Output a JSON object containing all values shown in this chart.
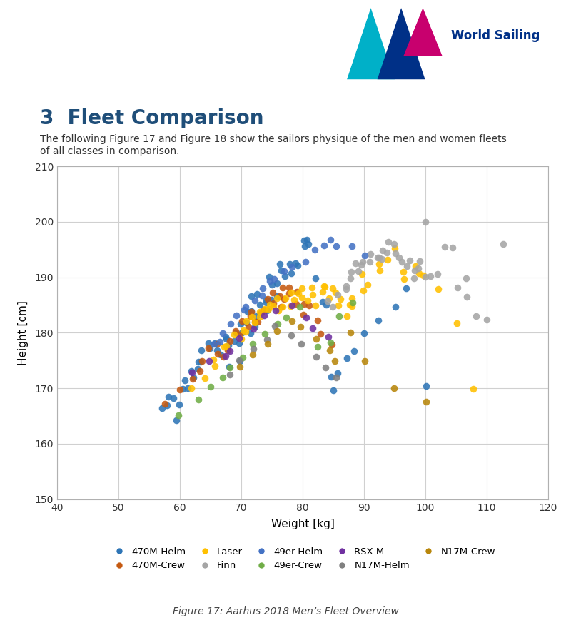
{
  "title": "3  Fleet Comparison",
  "subtitle": "The following Figure 17 and Figure 18 show the sailors physique of the men and women fleets\nof all classes in comparison.",
  "caption": "Figure 17: Aarhus 2018 Men’s Fleet Overview",
  "xlabel": "Weight [kg]",
  "ylabel": "Height [cm]",
  "xlim": [
    40,
    120
  ],
  "ylim": [
    150,
    210
  ],
  "xticks": [
    40,
    50,
    60,
    70,
    80,
    90,
    100,
    110,
    120
  ],
  "yticks": [
    150,
    160,
    170,
    180,
    190,
    200,
    210
  ],
  "background_color": "#ffffff",
  "classes": {
    "470M-Helm": {
      "color": "#2E75B6",
      "weight": [
        57,
        58,
        58,
        59,
        59,
        60,
        60,
        61,
        61,
        62,
        62,
        63,
        63,
        64,
        64,
        65,
        65,
        66,
        66,
        67,
        67,
        68,
        68,
        68,
        69,
        69,
        70,
        70,
        70,
        70,
        71,
        71,
        71,
        72,
        72,
        72,
        73,
        73,
        73,
        74,
        74,
        74,
        75,
        75,
        75,
        76,
        76,
        76,
        77,
        77,
        78,
        78,
        79,
        79,
        80,
        80,
        81,
        81,
        82,
        83,
        84,
        85,
        85,
        86,
        87,
        88,
        90,
        92,
        95,
        97,
        100
      ],
      "height": [
        166,
        167,
        168,
        165,
        168,
        167,
        170,
        170,
        172,
        172,
        173,
        173,
        175,
        175,
        177,
        177,
        178,
        177,
        178,
        176,
        179,
        178,
        174,
        179,
        179,
        180,
        178,
        180,
        175,
        182,
        182,
        180,
        184,
        184,
        181,
        186,
        185,
        183,
        187,
        186,
        184,
        186,
        188,
        186,
        190,
        189,
        187,
        192,
        190,
        191,
        191,
        192,
        193,
        192,
        195,
        197,
        197,
        196,
        190,
        186,
        185,
        170,
        172,
        173,
        175,
        177,
        180,
        182,
        185,
        188,
        170
      ]
    },
    "470M-Crew": {
      "color": "#C55A11",
      "weight": [
        58,
        60,
        62,
        63,
        64,
        65,
        66,
        66,
        67,
        68,
        68,
        69,
        70,
        70,
        71,
        71,
        72,
        72,
        73,
        73,
        74,
        74,
        75,
        75,
        76,
        76,
        77,
        77,
        78,
        78,
        79,
        79,
        80,
        80,
        81,
        82,
        83,
        84
      ],
      "height": [
        167,
        170,
        172,
        173,
        175,
        177,
        176,
        178,
        176,
        179,
        177,
        180,
        182,
        180,
        183,
        181,
        184,
        182,
        182,
        184,
        186,
        184,
        185,
        187,
        187,
        185,
        186,
        188,
        188,
        186,
        185,
        187,
        183,
        185,
        185,
        182,
        180,
        178
      ]
    },
    "Laser": {
      "color": "#FFC000",
      "weight": [
        62,
        64,
        65,
        66,
        67,
        68,
        69,
        70,
        70,
        71,
        71,
        72,
        72,
        73,
        73,
        74,
        74,
        75,
        75,
        76,
        76,
        77,
        77,
        78,
        78,
        79,
        79,
        80,
        80,
        81,
        81,
        82,
        82,
        83,
        83,
        84,
        84,
        85,
        85,
        86,
        86,
        87,
        88,
        88,
        89,
        90,
        90,
        91,
        92,
        93,
        94,
        95,
        96,
        97,
        98,
        99,
        100,
        102,
        105,
        108
      ],
      "height": [
        170,
        172,
        174,
        175,
        177,
        178,
        179,
        181,
        179,
        180,
        182,
        182,
        183,
        183,
        184,
        184,
        185,
        185,
        184,
        184,
        186,
        186,
        185,
        185,
        187,
        187,
        186,
        188,
        186,
        186,
        188,
        185,
        187,
        187,
        188,
        186,
        188,
        188,
        187,
        185,
        186,
        183,
        185,
        186,
        185,
        190,
        188,
        189,
        192,
        191,
        193,
        195,
        191,
        190,
        192,
        191,
        190,
        188,
        182,
        170
      ]
    },
    "Finn": {
      "color": "#A5A5A5",
      "weight": [
        84,
        85,
        86,
        87,
        87,
        88,
        88,
        89,
        89,
        90,
        90,
        91,
        91,
        92,
        92,
        93,
        93,
        94,
        94,
        95,
        95,
        96,
        96,
        97,
        97,
        98,
        98,
        99,
        99,
        100,
        100,
        101,
        102,
        103,
        104,
        105,
        106,
        107,
        108,
        110,
        112
      ],
      "height": [
        186,
        185,
        187,
        189,
        188,
        190,
        191,
        191,
        192,
        192,
        193,
        193,
        194,
        194,
        193,
        193,
        195,
        195,
        196,
        196,
        194,
        194,
        193,
        193,
        192,
        190,
        191,
        192,
        193,
        200,
        190,
        190,
        191,
        196,
        195,
        188,
        190,
        186,
        183,
        182,
        196
      ]
    },
    "49er-Helm": {
      "color": "#4472C4",
      "weight": [
        65,
        66,
        67,
        68,
        69,
        70,
        71,
        72,
        73,
        74,
        75,
        76,
        77,
        78,
        80,
        82,
        83,
        85,
        86,
        88,
        90
      ],
      "height": [
        178,
        179,
        180,
        182,
        183,
        184,
        185,
        186,
        187,
        188,
        189,
        190,
        191,
        192,
        193,
        195,
        196,
        197,
        196,
        195,
        194
      ]
    },
    "49er-Crew": {
      "color": "#70AD47",
      "weight": [
        60,
        63,
        65,
        67,
        68,
        70,
        72,
        74,
        76,
        78,
        80,
        82,
        84,
        86,
        88
      ],
      "height": [
        165,
        167,
        170,
        172,
        174,
        176,
        178,
        180,
        182,
        183,
        185,
        177,
        178,
        183,
        185
      ]
    },
    "RSX M": {
      "color": "#7030A0",
      "weight": [
        62,
        65,
        67,
        68,
        70,
        72,
        74,
        76,
        78,
        80,
        82,
        84
      ],
      "height": [
        173,
        175,
        176,
        177,
        179,
        181,
        183,
        184,
        185,
        183,
        181,
        179
      ]
    },
    "N17M-Helm": {
      "color": "#808080",
      "weight": [
        68,
        70,
        72,
        74,
        76,
        78,
        80,
        82,
        84,
        86
      ],
      "height": [
        173,
        175,
        177,
        179,
        181,
        180,
        178,
        176,
        174,
        172
      ]
    },
    "N17M-Crew": {
      "color": "#B8860B",
      "weight": [
        70,
        72,
        74,
        76,
        78,
        80,
        82,
        84,
        86,
        88,
        90,
        95,
        100
      ],
      "height": [
        174,
        176,
        178,
        180,
        182,
        181,
        179,
        177,
        175,
        180,
        175,
        170,
        167
      ]
    }
  },
  "legend_order": [
    "470M-Helm",
    "470M-Crew",
    "Laser",
    "Finn",
    "49er-Helm",
    "49er-Crew",
    "RSX M",
    "N17M-Helm",
    "N17M-Crew"
  ],
  "marker_size": 48,
  "grid_color": "#D0D0D0",
  "title_color": "#1F4E79",
  "fig_width": 8.0,
  "fig_height": 8.97,
  "logo_colors": {
    "cyan": "#00B0C8",
    "dark_blue": "#003087",
    "magenta": "#C8006E"
  }
}
